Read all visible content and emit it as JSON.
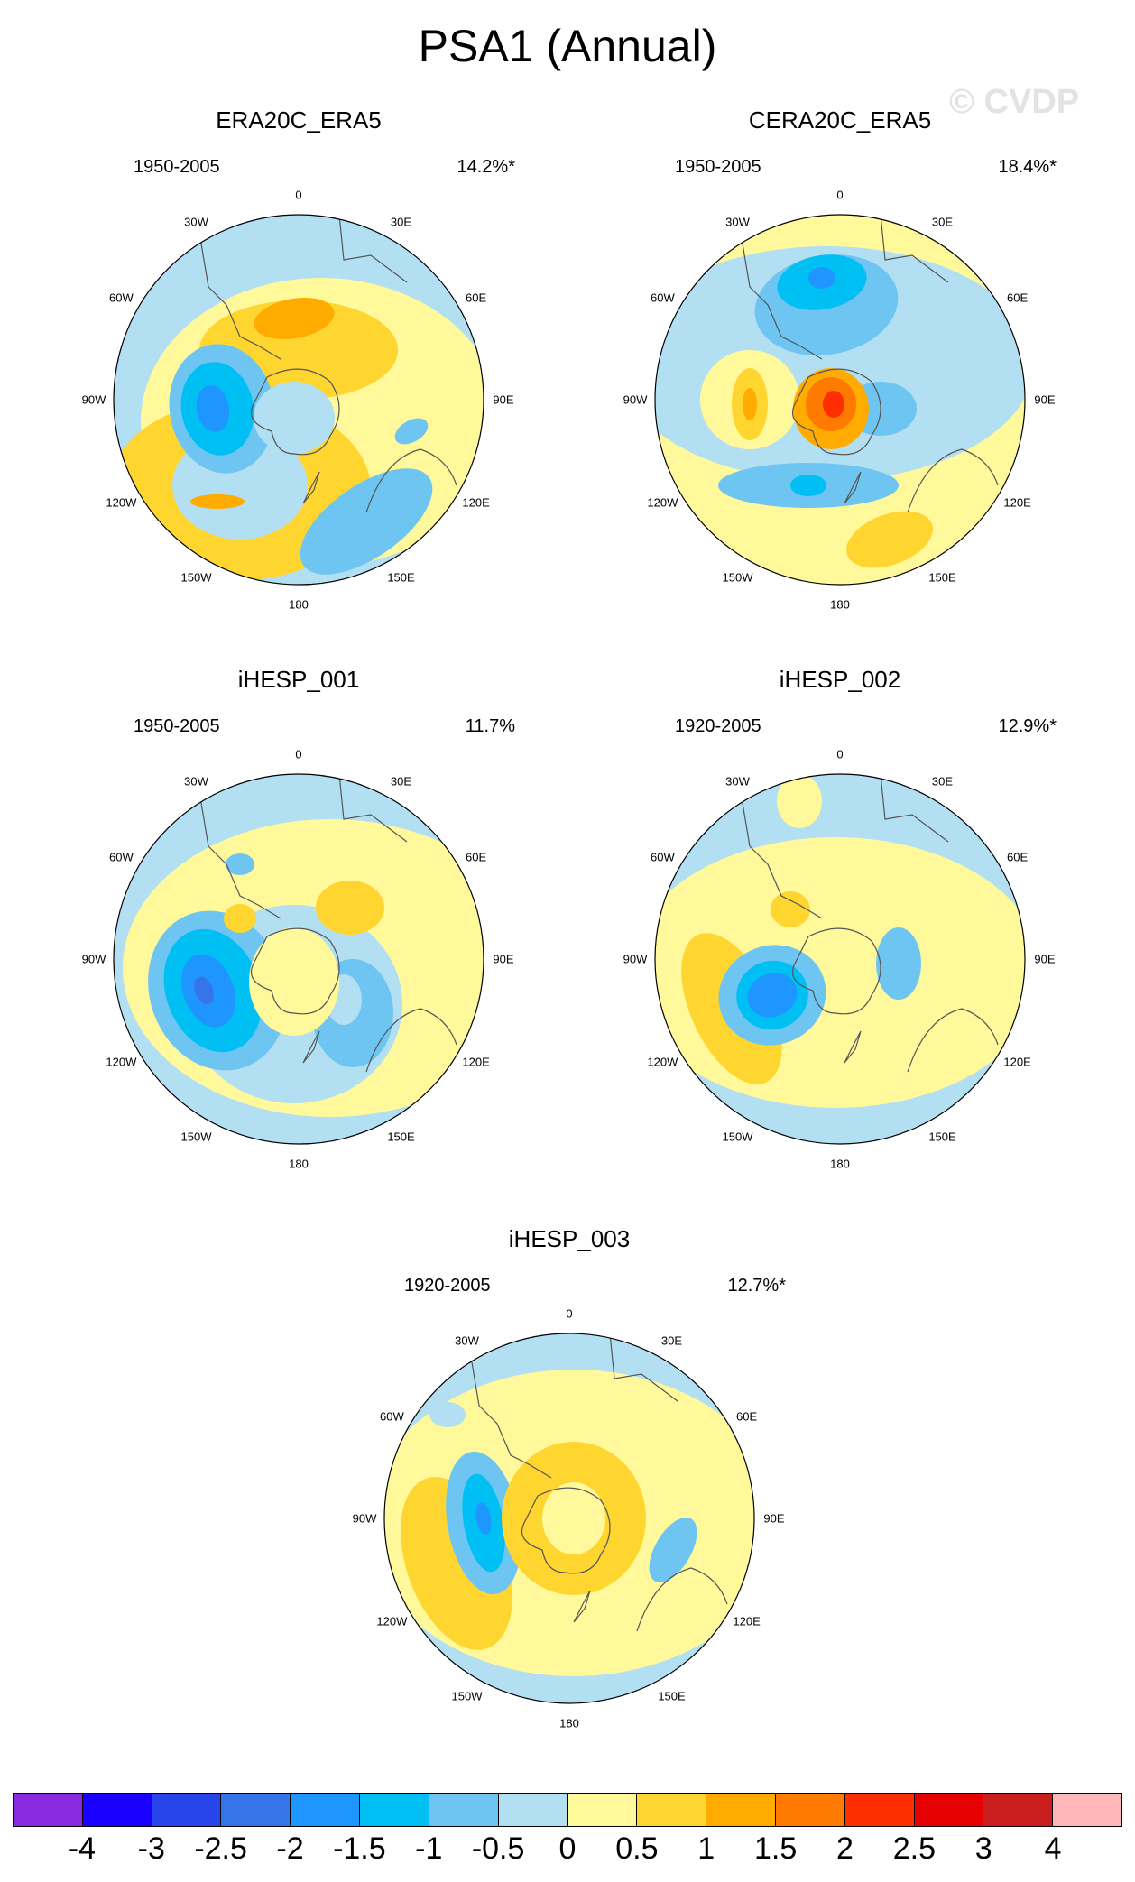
{
  "figure": {
    "title": "PSA1 (Annual)",
    "watermark": "© CVDP"
  },
  "panels": [
    {
      "name": "ERA20C_ERA5",
      "period": "1950-2005",
      "variance": "14.2%*"
    },
    {
      "name": "CERA20C_ERA5",
      "period": "1950-2005",
      "variance": "18.4%*"
    },
    {
      "name": "iHESP_001",
      "period": "1950-2005",
      "variance": "11.7%"
    },
    {
      "name": "iHESP_002",
      "period": "1920-2005",
      "variance": "12.9%*"
    },
    {
      "name": "iHESP_003",
      "period": "1920-2005",
      "variance": "12.7%*"
    }
  ],
  "longitude_labels": {
    "lon0": "0",
    "lon30e": "30E",
    "lon60e": "60E",
    "lon90e": "90E",
    "lon120e": "120E",
    "lon150e": "150E",
    "lon180": "180",
    "lon150w": "150W",
    "lon120w": "120W",
    "lon90w": "90W",
    "lon60w": "60W",
    "lon30w": "30W"
  },
  "colorbar": {
    "colors": [
      "#8a2be2",
      "#1a00ff",
      "#2a44ec",
      "#3674ea",
      "#1f96ff",
      "#00bff2",
      "#6fc5f2",
      "#b3dff3",
      "#fff99c",
      "#ffd52f",
      "#ffab00",
      "#ff7a00",
      "#ff2e00",
      "#e60000",
      "#cb1f1f",
      "#ffb6b6"
    ],
    "labels": [
      "-4",
      "-3",
      "-2.5",
      "-2",
      "-1.5",
      "-1",
      "-0.5",
      "0",
      "0.5",
      "1",
      "1.5",
      "2",
      "2.5",
      "3",
      "4"
    ]
  }
}
